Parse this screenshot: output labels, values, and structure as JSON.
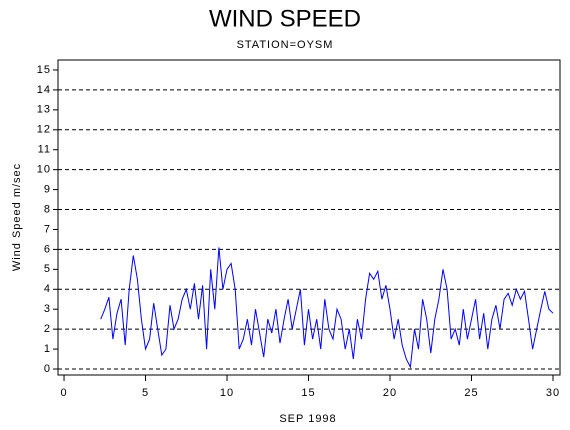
{
  "chart_data": {
    "type": "line",
    "title": "WIND SPEED",
    "subtitle": "STATION=OYSM",
    "x_label": "SEP 1998",
    "y_label": "Wind Speed m/sec",
    "xlim": [
      -0.37,
      30.43
    ],
    "ylim": [
      -0.3,
      15.5
    ],
    "xticks": [
      0,
      5,
      10,
      15,
      20,
      25,
      30
    ],
    "yticks": [
      0,
      1,
      2,
      3,
      4,
      5,
      6,
      7,
      8,
      9,
      10,
      11,
      12,
      13,
      14,
      15
    ],
    "grid_lines": [
      0,
      2,
      4,
      6,
      8,
      10,
      12,
      14
    ],
    "series": [
      {
        "name": "Wind Speed",
        "color": "#0000ff",
        "x": [
          2.25,
          2.5,
          2.75,
          3.0,
          3.25,
          3.5,
          3.75,
          4.0,
          4.25,
          4.5,
          4.75,
          5.0,
          5.25,
          5.5,
          5.75,
          6.0,
          6.25,
          6.5,
          6.75,
          7.0,
          7.25,
          7.5,
          7.75,
          8.0,
          8.25,
          8.5,
          8.75,
          9.0,
          9.25,
          9.5,
          9.75,
          10.0,
          10.25,
          10.5,
          10.75,
          11.0,
          11.25,
          11.5,
          11.75,
          12.0,
          12.25,
          12.5,
          12.75,
          13.0,
          13.25,
          13.5,
          13.75,
          14.0,
          14.25,
          14.5,
          14.75,
          15.0,
          15.25,
          15.5,
          15.75,
          16.0,
          16.25,
          16.5,
          16.75,
          17.0,
          17.25,
          17.5,
          17.75,
          18.0,
          18.25,
          18.5,
          18.75,
          19.0,
          19.25,
          19.5,
          19.75,
          20.0,
          20.25,
          20.5,
          20.75,
          21.0,
          21.25,
          21.5,
          21.75,
          22.0,
          22.25,
          22.5,
          22.75,
          23.0,
          23.25,
          23.5,
          23.75,
          24.0,
          24.25,
          24.5,
          24.75,
          25.0,
          25.25,
          25.5,
          25.75,
          26.0,
          26.25,
          26.5,
          26.75,
          27.0,
          27.25,
          27.5,
          27.75,
          28.0,
          28.25,
          28.5,
          28.75,
          29.0,
          29.25,
          29.5,
          29.75,
          30.0
        ],
        "values": [
          2.5,
          3.0,
          3.6,
          1.5,
          2.8,
          3.5,
          1.2,
          4.0,
          5.7,
          4.5,
          2.5,
          1.0,
          1.5,
          3.3,
          2.0,
          0.7,
          1.0,
          3.2,
          2.0,
          2.5,
          3.5,
          4.0,
          3.0,
          4.3,
          2.5,
          4.2,
          1.0,
          5.0,
          3.0,
          6.1,
          4.0,
          5.0,
          5.3,
          4.0,
          1.0,
          1.5,
          2.5,
          1.2,
          3.0,
          1.8,
          0.6,
          2.5,
          1.8,
          3.0,
          1.3,
          2.5,
          3.5,
          2.0,
          3.0,
          4.0,
          1.2,
          3.0,
          1.5,
          2.5,
          1.0,
          3.5,
          2.0,
          1.5,
          3.0,
          2.5,
          1.0,
          2.0,
          0.5,
          2.5,
          1.5,
          3.5,
          4.8,
          4.5,
          4.9,
          3.5,
          4.2,
          3.0,
          1.5,
          2.5,
          1.2,
          0.5,
          0.1,
          2.0,
          1.0,
          3.5,
          2.5,
          0.8,
          2.5,
          3.5,
          5.0,
          4.0,
          1.5,
          2.0,
          1.2,
          3.0,
          1.5,
          2.5,
          3.5,
          1.5,
          2.8,
          1.0,
          2.5,
          3.2,
          2.0,
          3.5,
          3.8,
          3.2,
          4.0,
          3.5,
          3.9,
          2.5,
          1.0,
          2.0,
          3.0,
          3.9,
          3.0,
          2.8
        ]
      }
    ]
  }
}
